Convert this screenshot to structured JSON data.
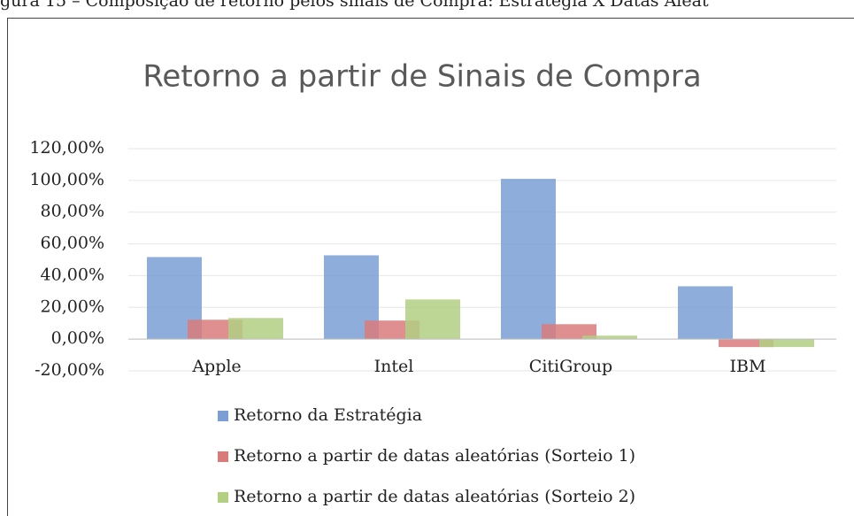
{
  "caption": "gura 15 – Composição de retorno pelos sinais de Compra: Estratégia X Datas Aleat",
  "chart_data": {
    "type": "bar",
    "title": "Retorno a partir de Sinais de Compra",
    "categories": [
      "Apple",
      "Intel",
      "CitiGroup",
      "IBM"
    ],
    "series": [
      {
        "name": "Retorno da Estratégia",
        "color": "#7b9fd4",
        "values": [
          51.7,
          52.8,
          101,
          33.3
        ]
      },
      {
        "name": "Retorno a partir de datas aleatórias (Sorteio 1)",
        "color": "#d97b7b",
        "values": [
          12.2,
          11.7,
          9.4,
          -5
        ]
      },
      {
        "name": "Retorno a partir de datas aleatórias (Sorteio 2)",
        "color": "#b3cf82",
        "values": [
          13.3,
          25,
          2.2,
          -5
        ]
      }
    ],
    "ylim": [
      -20,
      120
    ],
    "yticks": [
      {
        "value": -20,
        "label": "-20,00%"
      },
      {
        "value": 0,
        "label": "0,00%"
      },
      {
        "value": 20,
        "label": "20,00%"
      },
      {
        "value": 40,
        "label": "40,00%"
      },
      {
        "value": 60,
        "label": "60,00%"
      },
      {
        "value": 80,
        "label": "80,00%"
      },
      {
        "value": 100,
        "label": "100,00%"
      },
      {
        "value": 120,
        "label": "120,00%"
      }
    ],
    "grid": true
  }
}
